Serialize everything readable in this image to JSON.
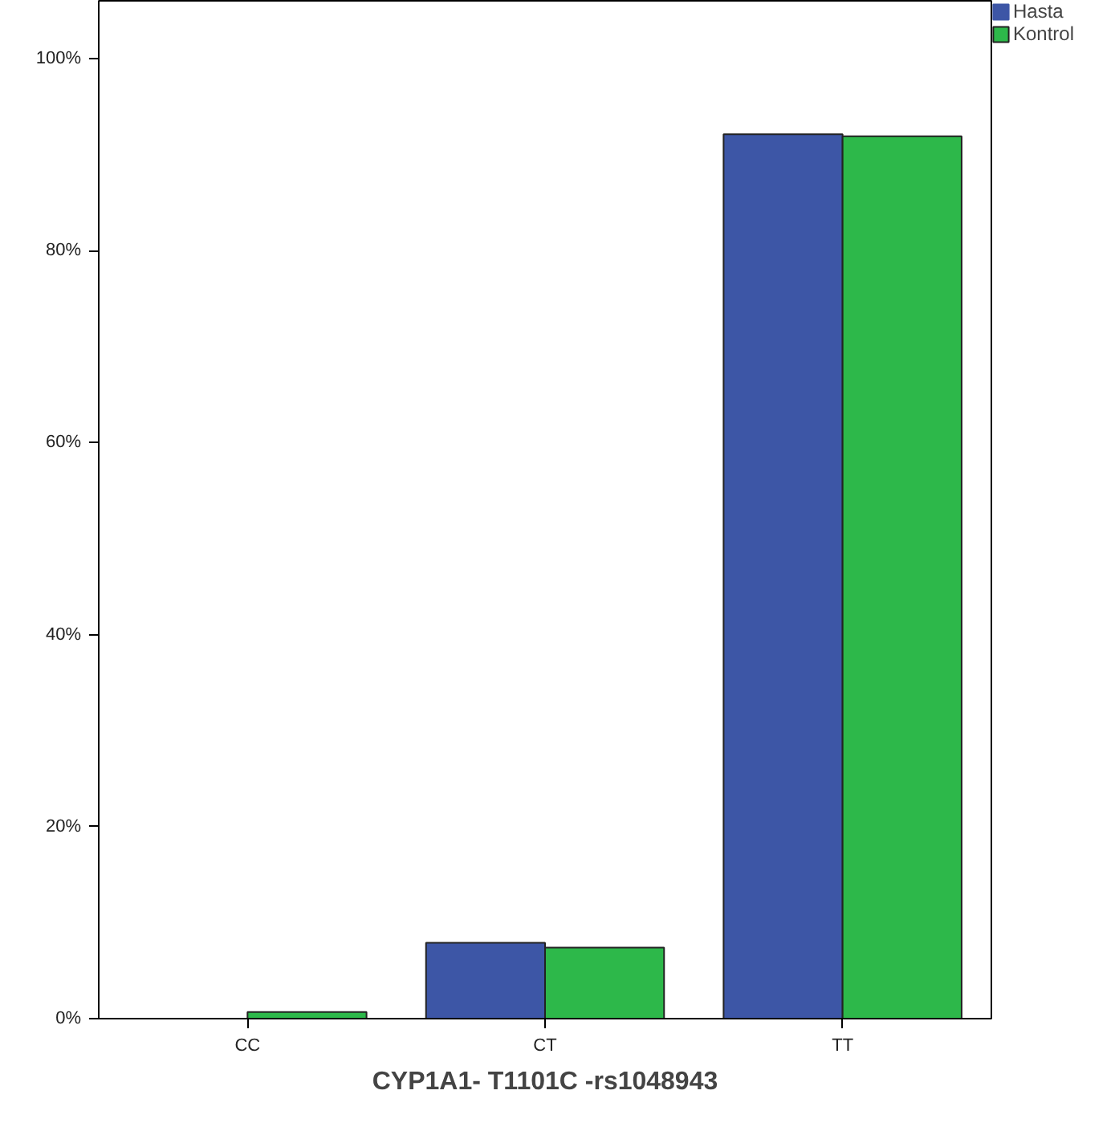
{
  "chart_data": {
    "type": "bar",
    "xlabel": "CYP1A1- T1101C -rs1048943",
    "categories": [
      "CC",
      "CT",
      "TT"
    ],
    "series": [
      {
        "name": "Hasta",
        "color": "#3d56a6",
        "values": [
          0,
          7.9,
          92.1
        ]
      },
      {
        "name": "Kontrol",
        "color": "#2db84a",
        "values": [
          0.7,
          7.4,
          91.9
        ]
      }
    ],
    "ylim": [
      0,
      106
    ],
    "yticks": [
      {
        "value": 0,
        "label": "0%"
      },
      {
        "value": 20,
        "label": "20%"
      },
      {
        "value": 40,
        "label": "40%"
      },
      {
        "value": 60,
        "label": "60%"
      },
      {
        "value": 80,
        "label": "80%"
      },
      {
        "value": 100,
        "label": "100%"
      }
    ],
    "grid": false,
    "legend": "top right"
  }
}
